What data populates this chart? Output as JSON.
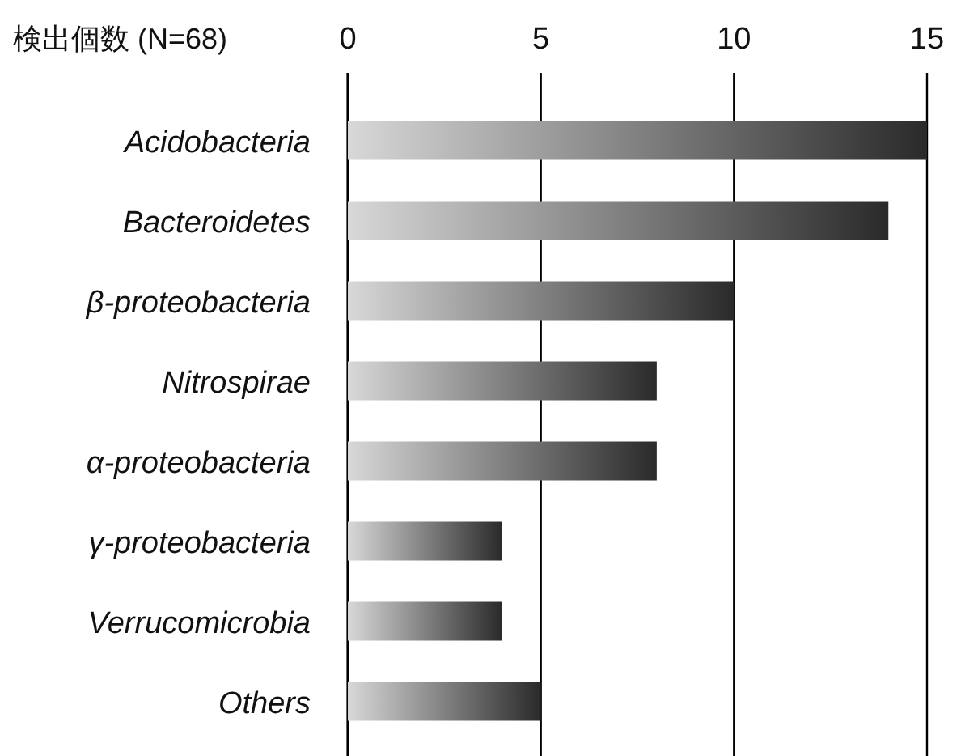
{
  "chart_data": {
    "type": "bar",
    "orientation": "horizontal",
    "xlabel": "検出個数 (N=68)",
    "categories": [
      "Acidobacteria",
      "Bacteroidetes",
      "β-proteobacteria",
      "Nitrospirae",
      "α-proteobacteria",
      "γ-proteobacteria",
      "Verrucomicrobia",
      "Others"
    ],
    "values": [
      15,
      14,
      10,
      8,
      8,
      4,
      4,
      5
    ],
    "color": "#2a2a2a",
    "xlim": [
      0,
      15
    ],
    "xticks": [
      0,
      5,
      10,
      15
    ],
    "grid": "x"
  }
}
